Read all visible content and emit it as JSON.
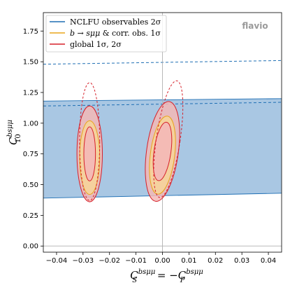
{
  "chart_data": {
    "type": "contour",
    "watermark": "flavio",
    "xlabel": {
      "main": "C",
      "sup": "bsμμ",
      "sub": "S",
      "mid": " = −",
      "main2": "C",
      "sup2": "bsμμ",
      "sub2": "P"
    },
    "ylabel": {
      "main": "C",
      "sup": "bsμμ",
      "sub": "10"
    },
    "xlim": [
      -0.045,
      0.045
    ],
    "ylim": [
      -0.05,
      1.9
    ],
    "x_ticks": [
      -0.04,
      -0.03,
      -0.02,
      -0.01,
      0.0,
      0.01,
      0.02,
      0.03,
      0.04
    ],
    "x_tick_labels": [
      "−0.04",
      "−0.03",
      "−0.02",
      "−0.01",
      "0.00",
      "0.01",
      "0.02",
      "0.03",
      "0.04"
    ],
    "y_ticks": [
      0.0,
      0.25,
      0.5,
      0.75,
      1.0,
      1.25,
      1.5,
      1.75
    ],
    "y_tick_labels": [
      "0.00",
      "0.25",
      "0.50",
      "0.75",
      "1.00",
      "1.25",
      "1.50",
      "1.75"
    ],
    "reference_lines": {
      "x": 0.0,
      "y": 0.0
    },
    "colors": {
      "nclfu": "#1f6fb4",
      "nclfu_fill": "#a9c7e3",
      "bsmumu": "#e8a51b",
      "bsmumu_fill": "#f6d49a",
      "global": "#d6202a",
      "global_fill": "#f3b9b6",
      "refline": "#b0b0b0"
    },
    "legend": {
      "position": "top-left",
      "entries": [
        {
          "key": "nclfu",
          "label": "NCLFU observables 2σ"
        },
        {
          "key": "bsmumu",
          "label_parts": {
            "b": "b",
            "arrow": " → ",
            "s": "s",
            "mm": "μμ",
            "rest": " & corr. obs. 1σ"
          }
        },
        {
          "key": "global",
          "label": "global 1σ, 2σ"
        }
      ]
    },
    "series": [
      {
        "key": "nclfu",
        "kind": "band",
        "lower": [
          [
            -0.045,
            0.39
          ],
          [
            0.045,
            0.43
          ]
        ],
        "upper": [
          [
            -0.045,
            1.18
          ],
          [
            0.045,
            1.2
          ]
        ],
        "extra_dashed": [
          [
            [
              -0.045,
              1.48
            ],
            [
              0.045,
              1.51
            ]
          ],
          [
            [
              -0.045,
              1.14
            ],
            [
              0.045,
              1.17
            ]
          ]
        ]
      },
      {
        "key": "bsmumu",
        "kind": "ellipses_1sigma",
        "regions": [
          {
            "cx": -0.0275,
            "cy": 0.72,
            "rx": 0.0038,
            "ry": 0.3,
            "tilt": 0.0
          },
          {
            "cx": 0.0,
            "cy": 0.74,
            "rx": 0.0046,
            "ry": 0.32,
            "tilt": 0.12
          }
        ]
      },
      {
        "key": "global",
        "kind": "ellipses_1sigma_2sigma",
        "regions": [
          {
            "cx": -0.0275,
            "cy": 0.75,
            "rx1": 0.0022,
            "ry1": 0.22,
            "rx2": 0.0048,
            "ry2": 0.39,
            "tilt": 0.0
          },
          {
            "cx": 0.0,
            "cy": 0.77,
            "rx1": 0.0032,
            "ry1": 0.24,
            "rx2": 0.006,
            "ry2": 0.41,
            "tilt": 0.13
          }
        ],
        "dashed_regions": [
          {
            "cx": -0.0275,
            "cy": 0.85,
            "rx": 0.0038,
            "ry": 0.48,
            "tilt": 0.0
          },
          {
            "cx": 0.0022,
            "cy": 0.87,
            "rx": 0.0045,
            "ry": 0.48,
            "tilt": 0.14
          }
        ]
      }
    ]
  }
}
